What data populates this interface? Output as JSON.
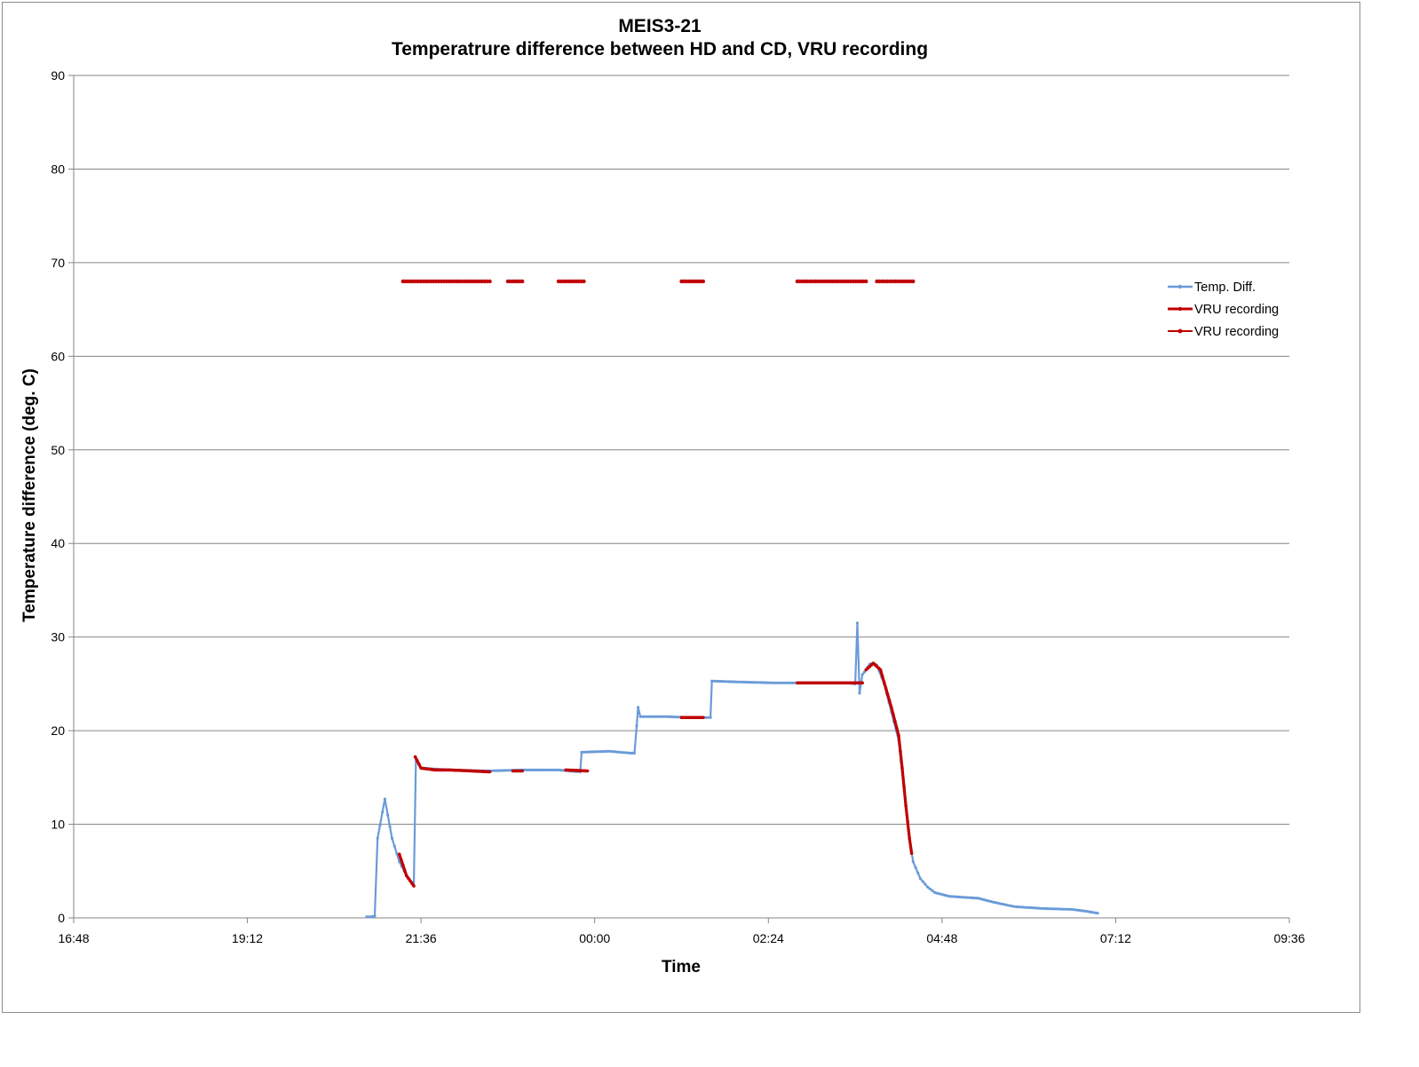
{
  "chart_data": {
    "type": "line",
    "title": "MEIS3-21",
    "subtitle": "Temperatrure difference between HD and CD, VRU recording",
    "xlabel": "Time",
    "ylabel": "Temperature difference (deg. C)",
    "ylim": [
      0,
      90
    ],
    "yticks": [
      0,
      10,
      20,
      30,
      40,
      50,
      60,
      70,
      80,
      90
    ],
    "xlim_hours": [
      16.8,
      33.6
    ],
    "xticks": [
      {
        "value": 16.8,
        "label": "16:48"
      },
      {
        "value": 19.2,
        "label": "19:12"
      },
      {
        "value": 21.6,
        "label": "21:36"
      },
      {
        "value": 24.0,
        "label": "00:00"
      },
      {
        "value": 26.4,
        "label": "02:24"
      },
      {
        "value": 28.8,
        "label": "04:48"
      },
      {
        "value": 31.2,
        "label": "07:12"
      },
      {
        "value": 33.6,
        "label": "09:36"
      }
    ],
    "grid": true,
    "legend": "right",
    "series": [
      {
        "name": "Temp. Diff.",
        "color": "#6a9bd8",
        "points": [
          [
            20.85,
            0.1
          ],
          [
            20.9,
            0.1
          ],
          [
            20.96,
            0.2
          ],
          [
            21.0,
            8.5
          ],
          [
            21.1,
            12.7
          ],
          [
            21.14,
            11.0
          ],
          [
            21.2,
            8.5
          ],
          [
            21.3,
            6.0
          ],
          [
            21.4,
            4.5
          ],
          [
            21.5,
            3.5
          ],
          [
            21.53,
            17.0
          ],
          [
            21.6,
            16.0
          ],
          [
            22.0,
            15.8
          ],
          [
            22.5,
            15.7
          ],
          [
            23.0,
            15.8
          ],
          [
            23.5,
            15.8
          ],
          [
            23.8,
            15.6
          ],
          [
            23.82,
            17.7
          ],
          [
            24.2,
            17.8
          ],
          [
            24.5,
            17.6
          ],
          [
            24.55,
            17.6
          ],
          [
            24.58,
            20.5
          ],
          [
            24.6,
            22.5
          ],
          [
            24.63,
            21.5
          ],
          [
            25.0,
            21.5
          ],
          [
            25.3,
            21.4
          ],
          [
            25.6,
            21.4
          ],
          [
            25.62,
            25.3
          ],
          [
            26.0,
            25.2
          ],
          [
            26.5,
            25.1
          ],
          [
            27.0,
            25.1
          ],
          [
            27.5,
            25.1
          ],
          [
            27.6,
            25.0
          ],
          [
            27.63,
            31.5
          ],
          [
            27.66,
            24.0
          ],
          [
            27.7,
            26.0
          ],
          [
            27.75,
            26.5
          ],
          [
            27.8,
            27.1
          ],
          [
            27.85,
            27.2
          ],
          [
            27.9,
            27.0
          ],
          [
            28.0,
            25.0
          ],
          [
            28.1,
            22.0
          ],
          [
            28.2,
            19.0
          ],
          [
            28.3,
            12.0
          ],
          [
            28.35,
            8.5
          ],
          [
            28.4,
            6.0
          ],
          [
            28.5,
            4.2
          ],
          [
            28.6,
            3.3
          ],
          [
            28.7,
            2.7
          ],
          [
            28.9,
            2.3
          ],
          [
            29.1,
            2.2
          ],
          [
            29.3,
            2.1
          ],
          [
            29.5,
            1.7
          ],
          [
            29.8,
            1.2
          ],
          [
            30.2,
            1.0
          ],
          [
            30.6,
            0.9
          ],
          [
            30.8,
            0.7
          ],
          [
            30.95,
            0.5
          ]
        ]
      },
      {
        "name": "VRU recording",
        "color": "#c00000",
        "segments": [
          [
            [
              21.3,
              6.8
            ],
            [
              21.4,
              4.5
            ],
            [
              21.5,
              3.4
            ]
          ],
          [
            [
              21.52,
              17.2
            ],
            [
              21.6,
              16.0
            ],
            [
              21.8,
              15.8
            ],
            [
              22.0,
              15.8
            ],
            [
              22.3,
              15.7
            ],
            [
              22.55,
              15.6
            ]
          ],
          [
            [
              22.87,
              15.7
            ],
            [
              23.0,
              15.7
            ]
          ],
          [
            [
              23.6,
              15.8
            ],
            [
              23.9,
              15.7
            ]
          ],
          [
            [
              25.2,
              21.4
            ],
            [
              25.5,
              21.4
            ]
          ],
          [
            [
              26.8,
              25.1
            ],
            [
              27.0,
              25.1
            ],
            [
              27.5,
              25.1
            ],
            [
              27.7,
              25.1
            ]
          ],
          [
            [
              27.75,
              26.5
            ],
            [
              27.85,
              27.2
            ],
            [
              27.95,
              26.5
            ],
            [
              28.1,
              22.5
            ],
            [
              28.2,
              19.5
            ],
            [
              28.25,
              16.0
            ],
            [
              28.3,
              12.0
            ],
            [
              28.35,
              8.5
            ],
            [
              28.38,
              6.9
            ]
          ]
        ]
      },
      {
        "name": "VRU recording",
        "color": "#c00000",
        "segments": [
          [
            [
              21.35,
              68
            ],
            [
              22.55,
              68
            ]
          ],
          [
            [
              22.8,
              68
            ],
            [
              23.0,
              68
            ]
          ],
          [
            [
              23.5,
              68
            ],
            [
              23.85,
              68
            ]
          ],
          [
            [
              25.2,
              68
            ],
            [
              25.5,
              68
            ]
          ],
          [
            [
              26.8,
              68
            ],
            [
              27.75,
              68
            ]
          ],
          [
            [
              27.9,
              68
            ],
            [
              28.4,
              68
            ]
          ]
        ]
      }
    ]
  }
}
